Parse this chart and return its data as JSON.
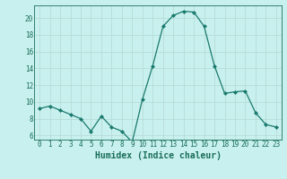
{
  "x": [
    0,
    1,
    2,
    3,
    4,
    5,
    6,
    7,
    8,
    9,
    10,
    11,
    12,
    13,
    14,
    15,
    16,
    17,
    18,
    19,
    20,
    21,
    22,
    23
  ],
  "y": [
    9.2,
    9.5,
    9.0,
    8.5,
    8.0,
    6.5,
    8.3,
    7.0,
    6.5,
    5.2,
    10.3,
    14.3,
    19.0,
    20.3,
    20.8,
    20.7,
    19.0,
    14.3,
    11.0,
    11.2,
    11.3,
    8.7,
    7.3,
    7.0
  ],
  "line_color": "#1a7a6e",
  "marker": "D",
  "marker_size": 2.0,
  "bg_color": "#c8f0ee",
  "grid_color": "#b8dcd8",
  "xlabel": "Humidex (Indice chaleur)",
  "ylim": [
    5.5,
    21.5
  ],
  "xlim": [
    -0.5,
    23.5
  ],
  "yticks": [
    6,
    8,
    10,
    12,
    14,
    16,
    18,
    20
  ],
  "xticks": [
    0,
    1,
    2,
    3,
    4,
    5,
    6,
    7,
    8,
    9,
    10,
    11,
    12,
    13,
    14,
    15,
    16,
    17,
    18,
    19,
    20,
    21,
    22,
    23
  ],
  "tick_color": "#1a6e5a",
  "label_fontsize": 5.5,
  "axis_label_fontsize": 7.0
}
